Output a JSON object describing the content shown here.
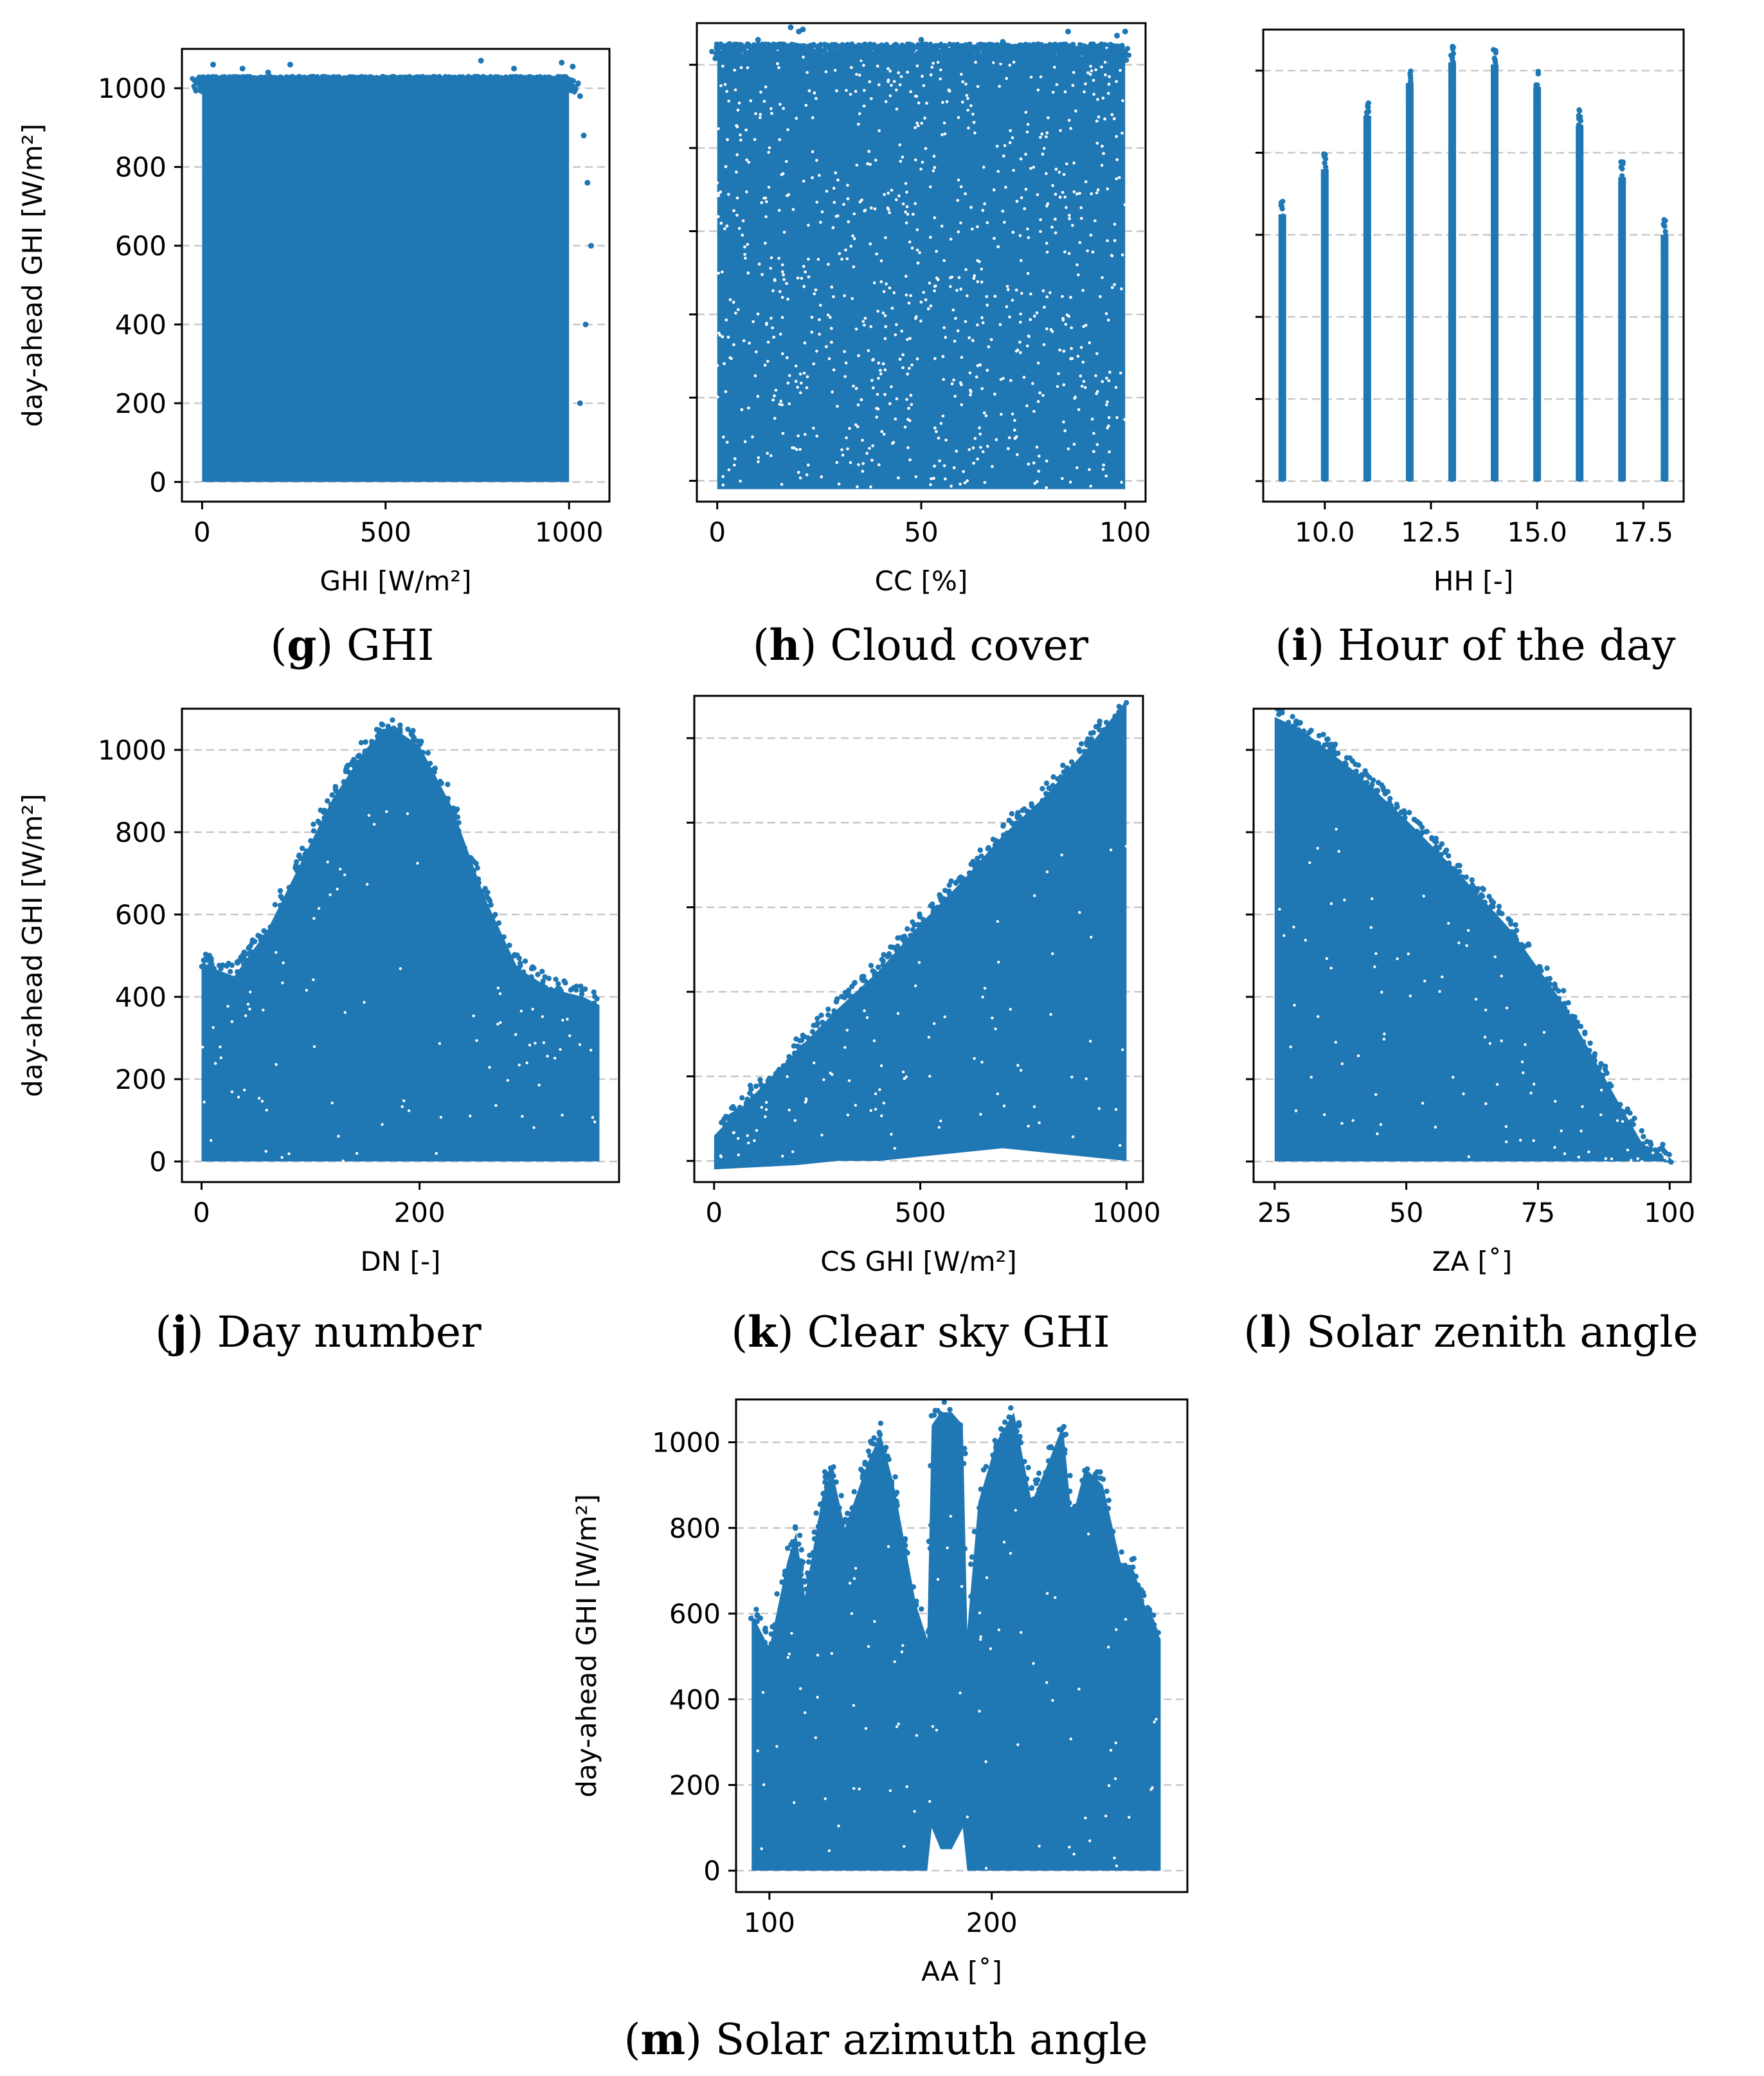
{
  "figure": {
    "marker_color": "#1f77b4",
    "grid_color": "#c8c8c8",
    "y_label": "day-ahead GHI [W/m²]"
  },
  "chart_data": [
    {
      "type": "scatter",
      "id": "g",
      "caption_letter": "g",
      "caption_text": "GHI",
      "xlabel": "GHI [W/m²]",
      "ylabel": "day-ahead GHI [W/m²]",
      "show_ylabel": true,
      "show_yticklabels": true,
      "xlim": [
        -55,
        1110
      ],
      "ylim": [
        -50,
        1100
      ],
      "xticks": [
        0,
        500,
        1000
      ],
      "xtick_labels": [
        "0",
        "500",
        "1000"
      ],
      "yticks": [
        0,
        200,
        400,
        600,
        800,
        1000
      ],
      "ytick_labels": [
        "0",
        "200",
        "400",
        "600",
        "800",
        "1000"
      ],
      "grid": "y-dashed",
      "cloud": {
        "kind": "uniform_fill",
        "x_range": [
          0,
          1000
        ],
        "y_range": [
          0,
          1000
        ],
        "n": 2600
      },
      "points": [
        {
          "x": 30,
          "y": 1060
        },
        {
          "x": 110,
          "y": 1050
        },
        {
          "x": 180,
          "y": 1040
        },
        {
          "x": 240,
          "y": 1060
        },
        {
          "x": 760,
          "y": 1070
        },
        {
          "x": 850,
          "y": 1050
        },
        {
          "x": 980,
          "y": 1065
        },
        {
          "x": 1010,
          "y": 1055
        },
        {
          "x": 1030,
          "y": 980
        },
        {
          "x": 1040,
          "y": 880
        },
        {
          "x": 1050,
          "y": 760
        },
        {
          "x": 1060,
          "y": 600
        },
        {
          "x": 1045,
          "y": 400
        },
        {
          "x": 1030,
          "y": 200
        },
        {
          "x": 990,
          "y": 150
        },
        {
          "x": 960,
          "y": 60
        }
      ]
    },
    {
      "type": "scatter",
      "id": "h",
      "caption_letter": "h",
      "caption_text": "Cloud cover",
      "xlabel": "CC [%]",
      "ylabel": "",
      "show_ylabel": false,
      "show_yticklabels": false,
      "xlim": [
        -5,
        105
      ],
      "ylim": [
        -50,
        1100
      ],
      "xticks": [
        0,
        50,
        100
      ],
      "xtick_labels": [
        "0",
        "50",
        "100"
      ],
      "yticks": [
        0,
        200,
        400,
        600,
        800,
        1000
      ],
      "ytick_labels": [],
      "grid": "y-dashed",
      "cloud": {
        "kind": "uniform_fill",
        "x_range": [
          0,
          100
        ],
        "y_range": [
          -20,
          1020
        ],
        "n": 3000
      },
      "points": [
        {
          "x": 10,
          "y": 1060
        },
        {
          "x": 18,
          "y": 1090
        },
        {
          "x": 20,
          "y": 1080
        },
        {
          "x": 21,
          "y": 1085
        },
        {
          "x": 86,
          "y": 1080
        },
        {
          "x": 98,
          "y": 1070
        },
        {
          "x": 100,
          "y": 1080
        },
        {
          "x": 3,
          "y": 1050
        },
        {
          "x": 50,
          "y": 1060
        },
        {
          "x": 70,
          "y": 1055
        }
      ]
    },
    {
      "type": "scatter",
      "id": "i",
      "caption_letter": "i",
      "caption_text": "Hour of the day",
      "xlabel": "HH [-]",
      "ylabel": "",
      "show_ylabel": false,
      "show_yticklabels": false,
      "xlim": [
        8.55,
        18.45
      ],
      "ylim": [
        -50,
        1100
      ],
      "xticks": [
        10.0,
        12.5,
        15.0,
        17.5
      ],
      "xtick_labels": [
        "10.0",
        "12.5",
        "15.0",
        "17.5"
      ],
      "yticks": [
        0,
        200,
        400,
        600,
        800,
        1000
      ],
      "ytick_labels": [],
      "grid": "y-dashed",
      "columns": [
        {
          "x": 9,
          "max": 690
        },
        {
          "x": 10,
          "max": 800
        },
        {
          "x": 11,
          "max": 930
        },
        {
          "x": 12,
          "max": 1010
        },
        {
          "x": 13,
          "max": 1060
        },
        {
          "x": 14,
          "max": 1055
        },
        {
          "x": 15,
          "max": 1000
        },
        {
          "x": 16,
          "max": 905
        },
        {
          "x": 17,
          "max": 780
        },
        {
          "x": 18,
          "max": 640
        }
      ]
    },
    {
      "type": "scatter",
      "id": "j",
      "caption_letter": "j",
      "caption_text": "Day number",
      "xlabel": "DN [-]",
      "ylabel": "day-ahead GHI [W/m²]",
      "show_ylabel": true,
      "show_yticklabels": true,
      "xlim": [
        -18,
        383
      ],
      "ylim": [
        -50,
        1100
      ],
      "xticks": [
        0,
        200
      ],
      "xtick_labels": [
        "0",
        "200"
      ],
      "yticks": [
        0,
        200,
        400,
        600,
        800,
        1000
      ],
      "ytick_labels": [
        "0",
        "200",
        "400",
        "600",
        "800",
        "1000"
      ],
      "grid": "y-dashed",
      "envelope": {
        "x": [
          0,
          30,
          60,
          90,
          120,
          150,
          172,
          200,
          230,
          260,
          290,
          320,
          350,
          365
        ],
        "upper": [
          480,
          450,
          560,
          720,
          880,
          1000,
          1060,
          1010,
          860,
          640,
          470,
          420,
          400,
          380
        ],
        "lower": [
          0,
          0,
          0,
          0,
          0,
          0,
          0,
          0,
          0,
          0,
          0,
          0,
          0,
          0
        ]
      }
    },
    {
      "type": "scatter",
      "id": "k",
      "caption_letter": "k",
      "caption_text": "Clear sky GHI",
      "xlabel": "CS GHI [W/m²]",
      "ylabel": "",
      "show_ylabel": false,
      "show_yticklabels": false,
      "xlim": [
        -48,
        1040
      ],
      "ylim": [
        -50,
        1100
      ],
      "xticks": [
        0,
        500,
        1000
      ],
      "xtick_labels": [
        "0",
        "500",
        "1000"
      ],
      "yticks": [
        0,
        200,
        400,
        600,
        800,
        1000
      ],
      "ytick_labels": [],
      "grid": "y-dashed",
      "envelope": {
        "x": [
          0,
          100,
          200,
          300,
          400,
          500,
          600,
          700,
          800,
          900,
          1000
        ],
        "upper": [
          60,
          160,
          260,
          360,
          450,
          560,
          660,
          770,
          860,
          970,
          1090
        ],
        "lower": [
          -20,
          -15,
          -10,
          0,
          0,
          10,
          20,
          30,
          20,
          10,
          0
        ]
      }
    },
    {
      "type": "scatter",
      "id": "l",
      "caption_letter": "l",
      "caption_text": "Solar zenith angle",
      "xlabel": "ZA [˚]",
      "ylabel": "",
      "show_ylabel": false,
      "show_yticklabels": false,
      "xlim": [
        21,
        104
      ],
      "ylim": [
        -50,
        1100
      ],
      "xticks": [
        25,
        50,
        75,
        100
      ],
      "xtick_labels": [
        "25",
        "50",
        "75",
        "100"
      ],
      "yticks": [
        0,
        200,
        400,
        600,
        800,
        1000
      ],
      "ytick_labels": [],
      "grid": "y-dashed",
      "envelope": {
        "x": [
          25,
          30,
          40,
          50,
          60,
          70,
          80,
          90,
          95,
          100
        ],
        "upper": [
          1080,
          1050,
          950,
          830,
          700,
          560,
          380,
          150,
          40,
          5
        ],
        "lower": [
          0,
          0,
          0,
          0,
          0,
          0,
          0,
          0,
          0,
          0
        ]
      }
    },
    {
      "type": "scatter",
      "id": "m",
      "caption_letter": "m",
      "caption_text": "Solar azimuth angle",
      "xlabel": "AA [˚]",
      "ylabel": "day-ahead GHI [W/m²]",
      "show_ylabel": true,
      "show_yticklabels": true,
      "xlim": [
        85,
        288
      ],
      "ylim": [
        -50,
        1100
      ],
      "xticks": [
        100,
        200
      ],
      "xtick_labels": [
        "100",
        "200"
      ],
      "yticks": [
        0,
        200,
        400,
        600,
        800,
        1000
      ],
      "ytick_labels": [
        "0",
        "200",
        "400",
        "600",
        "800",
        "1000"
      ],
      "grid": "y-dashed",
      "envelope": {
        "x": [
          92,
          100,
          108,
          112,
          116,
          124,
          128,
          134,
          144,
          150,
          156,
          166,
          171,
          173,
          177,
          182,
          187,
          189,
          194,
          202,
          210,
          218,
          226,
          232,
          236,
          242,
          250,
          258,
          264,
          270,
          276
        ],
        "upper": [
          600,
          520,
          720,
          790,
          640,
          880,
          940,
          800,
          950,
          1020,
          900,
          620,
          540,
          1040,
          1070,
          1070,
          1040,
          560,
          860,
          1000,
          1070,
          860,
          960,
          1040,
          820,
          940,
          900,
          720,
          700,
          600,
          540
        ],
        "lower": [
          0,
          0,
          0,
          0,
          0,
          0,
          0,
          0,
          0,
          0,
          0,
          0,
          0,
          100,
          50,
          50,
          100,
          0,
          0,
          0,
          0,
          0,
          0,
          0,
          0,
          0,
          0,
          0,
          0,
          0,
          0
        ]
      }
    }
  ]
}
